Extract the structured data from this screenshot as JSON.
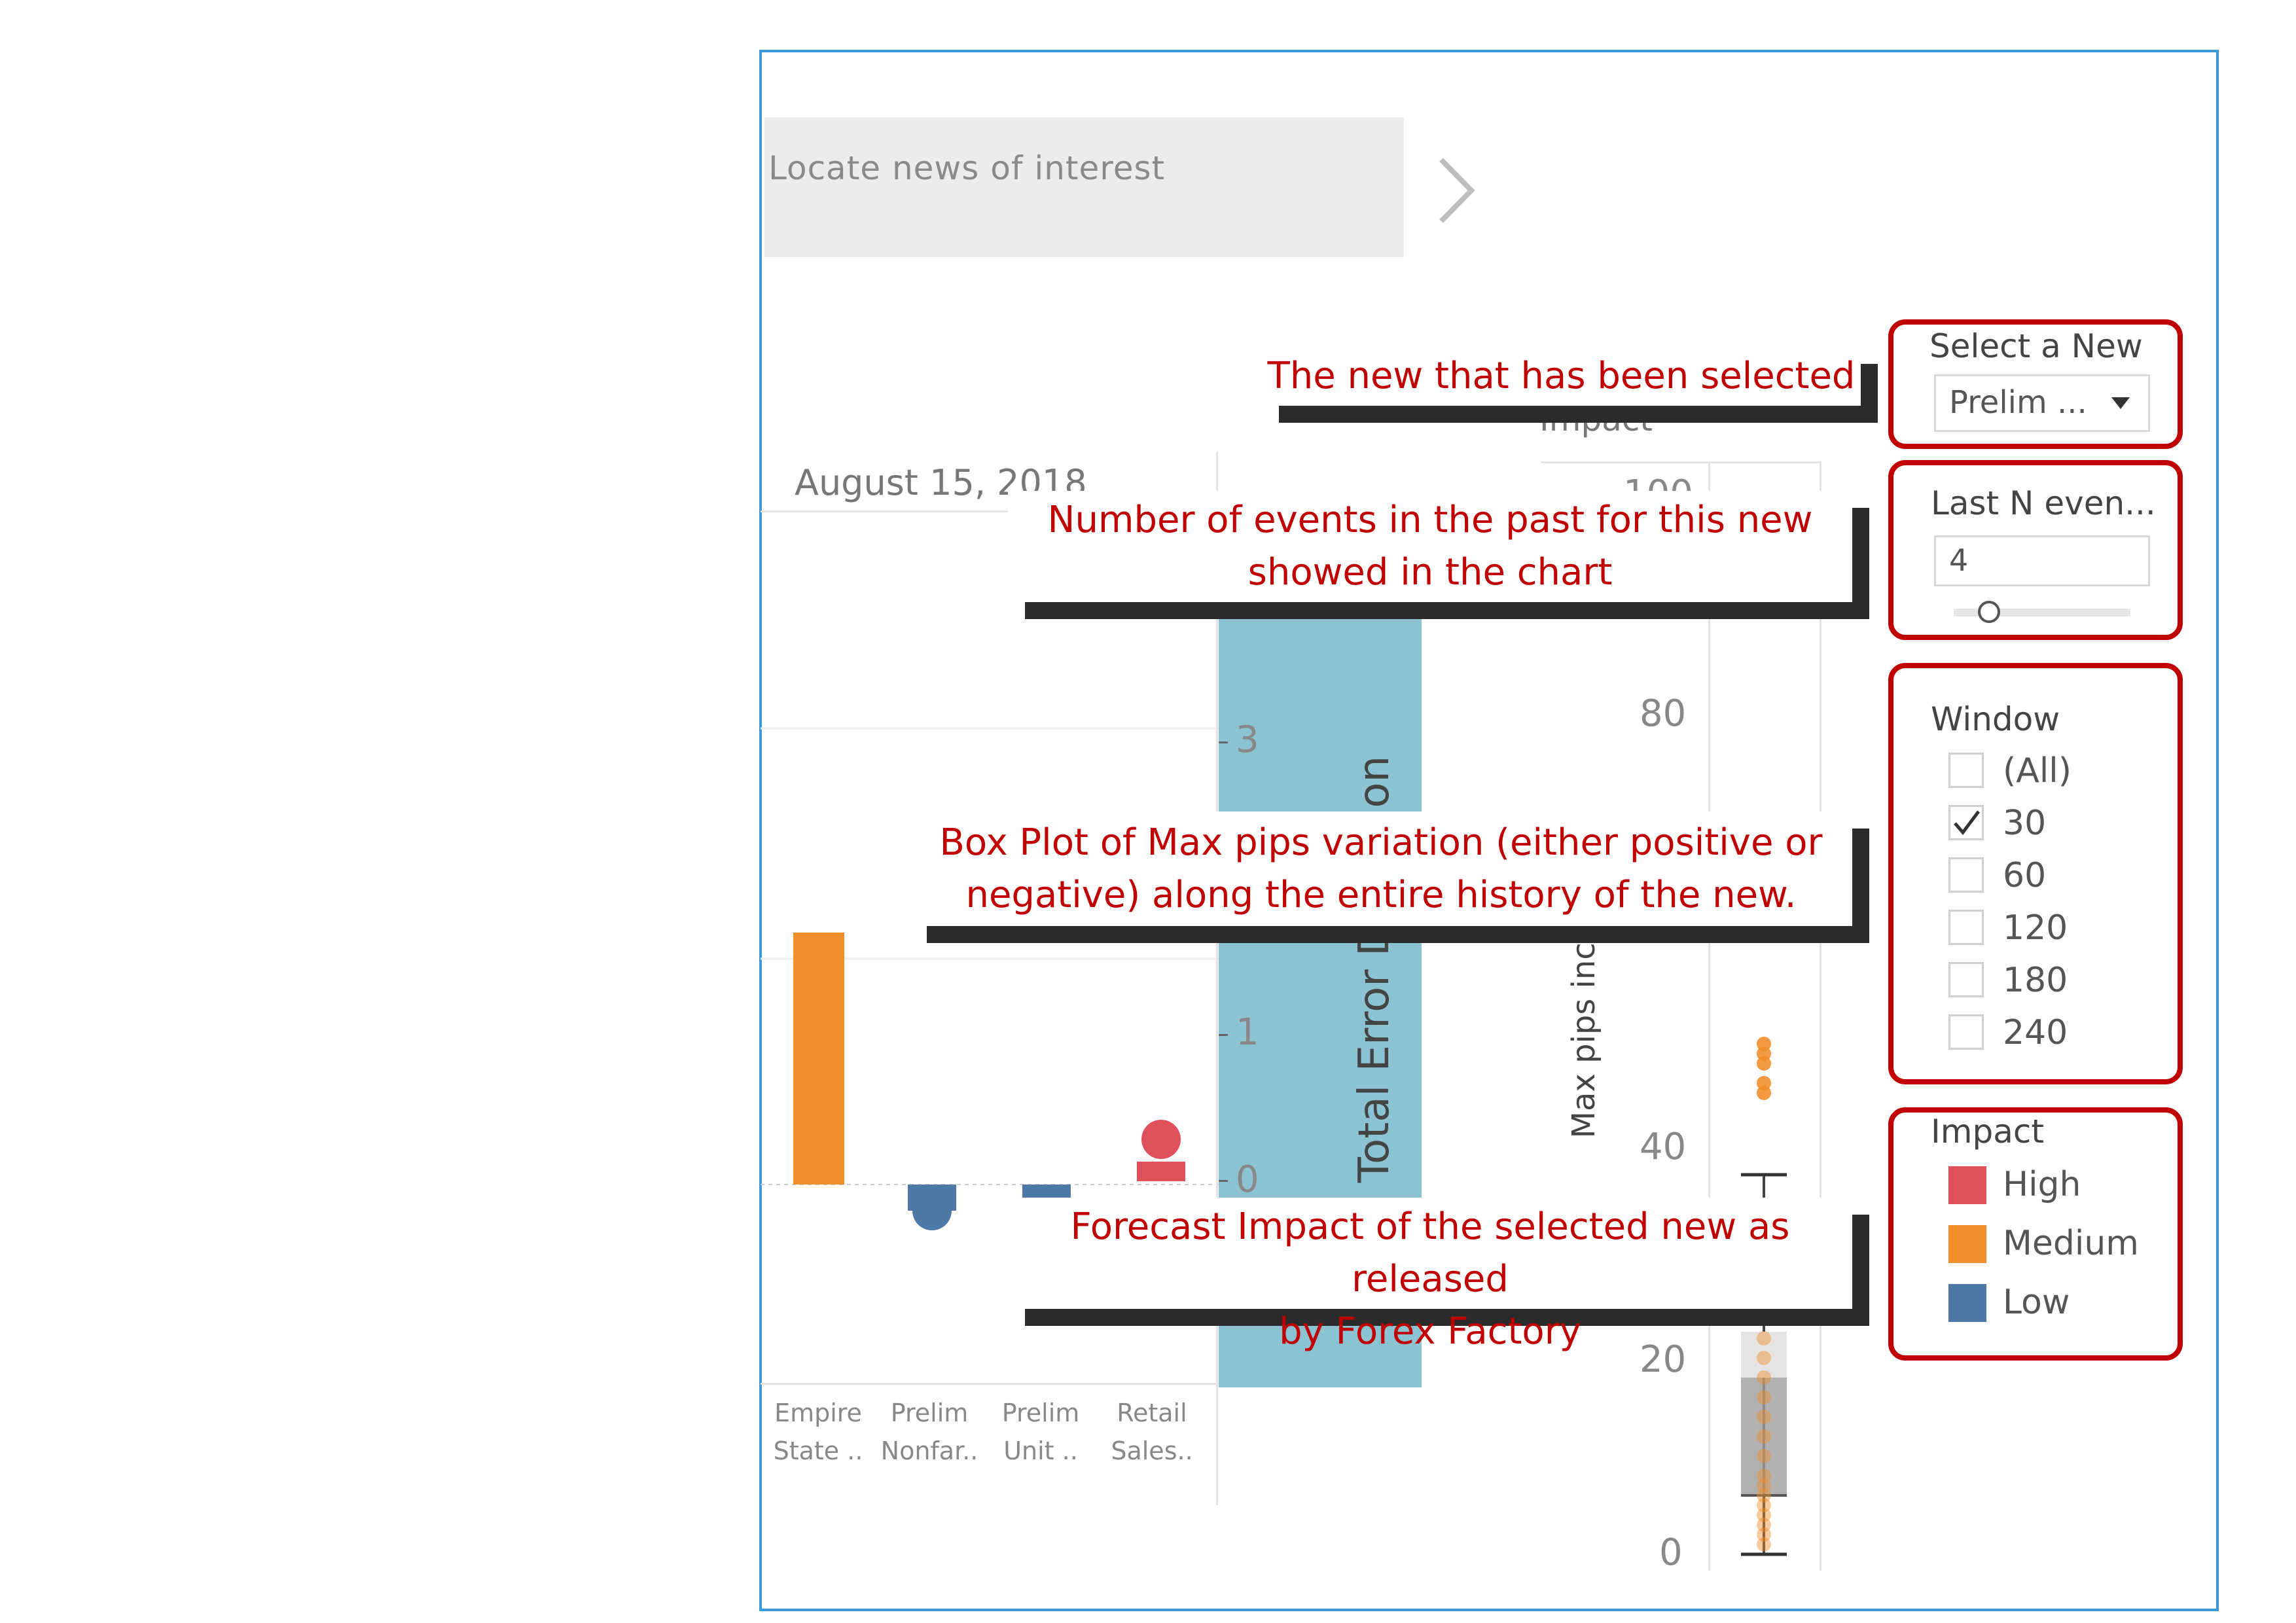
{
  "search": {
    "placeholder": "Locate news of interest"
  },
  "date_label": "August 15, 2018",
  "error_axis": {
    "title": "Total Error Deviation",
    "ticks": [
      "3",
      "1",
      "0"
    ]
  },
  "impact_axis": {
    "title_fragment": "Impact",
    "ylabel": "Max pips incr",
    "ticks": [
      "100",
      "80",
      "40",
      "20",
      "0"
    ]
  },
  "categories": [
    {
      "line1": "Empire",
      "line2": "State .."
    },
    {
      "line1": "Prelim",
      "line2": "Nonfar.."
    },
    {
      "line1": "Prelim",
      "line2": "Unit .."
    },
    {
      "line1": "Retail",
      "line2": "Sales.."
    }
  ],
  "controls": {
    "select_new": {
      "title": "Select a New",
      "value": "Prelim ..."
    },
    "last_n": {
      "title": "Last N even...",
      "value": "4"
    },
    "window": {
      "title": "Window",
      "options": [
        {
          "label": "(All)",
          "checked": false
        },
        {
          "label": "30",
          "checked": true
        },
        {
          "label": "60",
          "checked": false
        },
        {
          "label": "120",
          "checked": false
        },
        {
          "label": "180",
          "checked": false
        },
        {
          "label": "240",
          "checked": false
        }
      ]
    },
    "impact_legend": {
      "title": "Impact",
      "items": [
        {
          "label": "High",
          "color": "#e0505b"
        },
        {
          "label": "Medium",
          "color": "#f28e2b"
        },
        {
          "label": "Low",
          "color": "#4e79a7"
        }
      ]
    }
  },
  "callouts": {
    "selected": "The new that has been selected",
    "events_line1": "Number of events in the past for this new",
    "events_line2": "showed in the chart",
    "boxplot_line1": "Box Plot of Max pips variation (either positive or",
    "boxplot_line2": "negative) along the entire history of the new.",
    "forecast_line1": "Forecast Impact of the selected new as released",
    "forecast_line2": "by Forex  Factory"
  },
  "chart_data": [
    {
      "type": "bar",
      "categories": [
        "Empire State ..",
        "Prelim Nonfar..",
        "Prelim Unit ..",
        "Retail Sales.."
      ],
      "values": [
        1.1,
        -0.2,
        -0.1,
        0.1
      ],
      "impact": [
        "Medium",
        "Low",
        "Low",
        "High"
      ],
      "colors": [
        "#f28e2b",
        "#4e79a7",
        "#4e79a7",
        "#e0505b"
      ]
    },
    {
      "type": "scatter",
      "ylabel": "Max pips incr",
      "ylim": [
        0,
        100
      ],
      "points": [
        52,
        51,
        50,
        48,
        47,
        22,
        20,
        18,
        16,
        14,
        12,
        10,
        8,
        7,
        6,
        5,
        4,
        3,
        2,
        1
      ],
      "box": {
        "min": 0,
        "q1": 6,
        "median": 10,
        "q3": 11,
        "max": 35
      }
    }
  ]
}
